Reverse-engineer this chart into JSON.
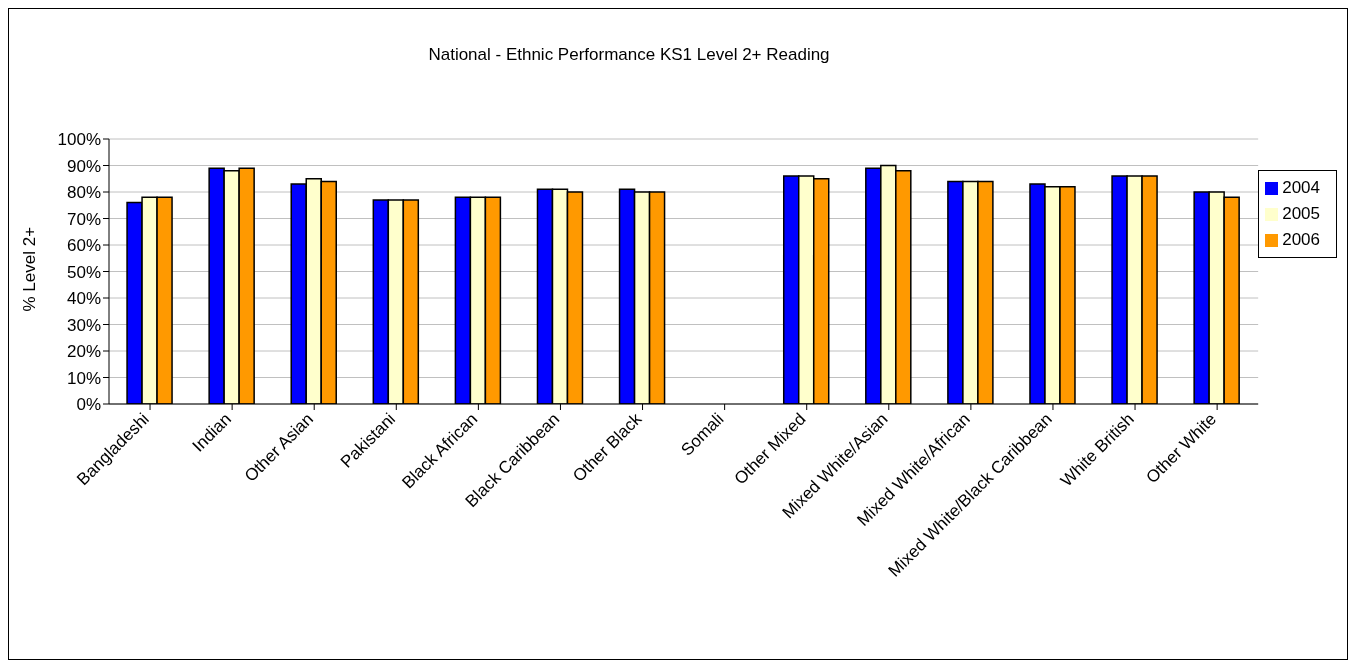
{
  "chart_data": {
    "type": "bar",
    "title": "National - Ethnic Performance KS1 Level 2+ Reading",
    "ylabel": "% Level 2+",
    "categories": [
      "Bangladeshi",
      "Indian",
      "Other Asian",
      "Pakistani",
      "Black African",
      "Black Caribbean",
      "Other Black",
      "Somali",
      "Other Mixed",
      "Mixed White/Asian",
      "Mixed White/African",
      "Mixed White/Black Caribbean",
      "White British",
      "Other White"
    ],
    "series": [
      {
        "name": "2004",
        "color": "#0000ff",
        "values": [
          76,
          89,
          83,
          77,
          78,
          81,
          81,
          null,
          86,
          89,
          84,
          83,
          86,
          80
        ]
      },
      {
        "name": "2005",
        "color": "#ffffcc",
        "values": [
          78,
          88,
          85,
          77,
          78,
          81,
          80,
          null,
          86,
          90,
          84,
          82,
          86,
          80
        ]
      },
      {
        "name": "2006",
        "color": "#ff9900",
        "values": [
          78,
          89,
          84,
          77,
          78,
          80,
          80,
          null,
          85,
          88,
          84,
          82,
          86,
          78
        ]
      }
    ],
    "ylim": [
      0,
      100
    ],
    "yticks": [
      {
        "value": 0,
        "label": "0%"
      },
      {
        "value": 10,
        "label": "10%"
      },
      {
        "value": 20,
        "label": "20%"
      },
      {
        "value": 30,
        "label": "30%"
      },
      {
        "value": 40,
        "label": "40%"
      },
      {
        "value": 50,
        "label": "50%"
      },
      {
        "value": 60,
        "label": "60%"
      },
      {
        "value": 70,
        "label": "70%"
      },
      {
        "value": 80,
        "label": "80%"
      },
      {
        "value": 90,
        "label": "90%"
      },
      {
        "value": 100,
        "label": "100%"
      }
    ],
    "grid": "y",
    "legend": "right"
  }
}
